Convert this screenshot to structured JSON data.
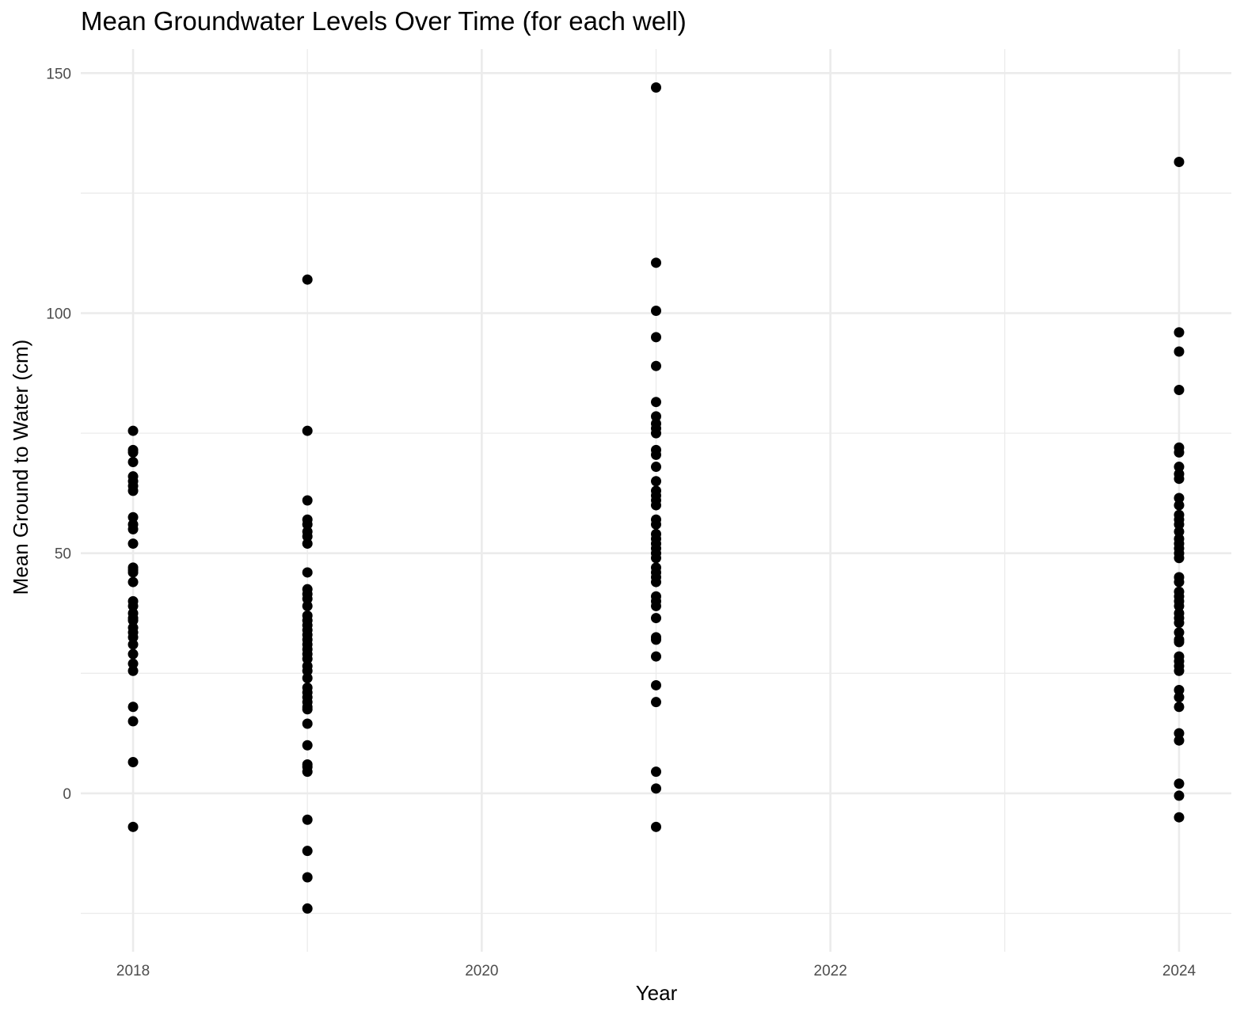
{
  "chart_data": {
    "type": "scatter",
    "title": "Mean Groundwater Levels Over Time (for each well)",
    "xlabel": "Year",
    "ylabel": "Mean Ground to Water (cm)",
    "xlim": [
      2017.7,
      2024.3
    ],
    "ylim": [
      -33,
      155
    ],
    "x_ticks": [
      2018,
      2020,
      2022,
      2024
    ],
    "x_tick_labels": [
      "2018",
      "2020",
      "2022",
      "2024"
    ],
    "y_ticks": [
      0,
      50,
      100,
      150
    ],
    "y_tick_labels": [
      "0",
      "50",
      "100",
      "150"
    ],
    "grid": true,
    "point_color": "#000000",
    "grid_color": "#ebebeb",
    "series": [
      {
        "points": [
          {
            "x": 2018,
            "y": 75.5
          },
          {
            "x": 2018,
            "y": 71.5
          },
          {
            "x": 2018,
            "y": 71.0
          },
          {
            "x": 2018,
            "y": 69.0
          },
          {
            "x": 2018,
            "y": 66.0
          },
          {
            "x": 2018,
            "y": 65.0
          },
          {
            "x": 2018,
            "y": 64.0
          },
          {
            "x": 2018,
            "y": 63.0
          },
          {
            "x": 2018,
            "y": 57.5
          },
          {
            "x": 2018,
            "y": 56.0
          },
          {
            "x": 2018,
            "y": 55.0
          },
          {
            "x": 2018,
            "y": 52.0
          },
          {
            "x": 2018,
            "y": 47.0
          },
          {
            "x": 2018,
            "y": 46.5
          },
          {
            "x": 2018,
            "y": 46.0
          },
          {
            "x": 2018,
            "y": 44.0
          },
          {
            "x": 2018,
            "y": 40.0
          },
          {
            "x": 2018,
            "y": 39.0
          },
          {
            "x": 2018,
            "y": 37.5
          },
          {
            "x": 2018,
            "y": 36.5
          },
          {
            "x": 2018,
            "y": 36.0
          },
          {
            "x": 2018,
            "y": 34.5
          },
          {
            "x": 2018,
            "y": 33.5
          },
          {
            "x": 2018,
            "y": 32.5
          },
          {
            "x": 2018,
            "y": 31.0
          },
          {
            "x": 2018,
            "y": 29.0
          },
          {
            "x": 2018,
            "y": 27.0
          },
          {
            "x": 2018,
            "y": 25.5
          },
          {
            "x": 2018,
            "y": 18.0
          },
          {
            "x": 2018,
            "y": 15.0
          },
          {
            "x": 2018,
            "y": 6.5
          },
          {
            "x": 2018,
            "y": -7.0
          },
          {
            "x": 2019,
            "y": 107.0
          },
          {
            "x": 2019,
            "y": 75.5
          },
          {
            "x": 2019,
            "y": 61.0
          },
          {
            "x": 2019,
            "y": 57.0
          },
          {
            "x": 2019,
            "y": 56.0
          },
          {
            "x": 2019,
            "y": 54.5
          },
          {
            "x": 2019,
            "y": 53.5
          },
          {
            "x": 2019,
            "y": 52.0
          },
          {
            "x": 2019,
            "y": 46.0
          },
          {
            "x": 2019,
            "y": 42.5
          },
          {
            "x": 2019,
            "y": 41.5
          },
          {
            "x": 2019,
            "y": 40.5
          },
          {
            "x": 2019,
            "y": 39.0
          },
          {
            "x": 2019,
            "y": 37.0
          },
          {
            "x": 2019,
            "y": 36.0
          },
          {
            "x": 2019,
            "y": 35.0
          },
          {
            "x": 2019,
            "y": 34.0
          },
          {
            "x": 2019,
            "y": 33.0
          },
          {
            "x": 2019,
            "y": 32.0
          },
          {
            "x": 2019,
            "y": 31.0
          },
          {
            "x": 2019,
            "y": 30.0
          },
          {
            "x": 2019,
            "y": 29.0
          },
          {
            "x": 2019,
            "y": 28.0
          },
          {
            "x": 2019,
            "y": 26.5
          },
          {
            "x": 2019,
            "y": 25.5
          },
          {
            "x": 2019,
            "y": 24.0
          },
          {
            "x": 2019,
            "y": 22.0
          },
          {
            "x": 2019,
            "y": 21.0
          },
          {
            "x": 2019,
            "y": 20.0
          },
          {
            "x": 2019,
            "y": 19.0
          },
          {
            "x": 2019,
            "y": 18.0
          },
          {
            "x": 2019,
            "y": 17.5
          },
          {
            "x": 2019,
            "y": 14.5
          },
          {
            "x": 2019,
            "y": 10.0
          },
          {
            "x": 2019,
            "y": 6.0
          },
          {
            "x": 2019,
            "y": 5.5
          },
          {
            "x": 2019,
            "y": 4.5
          },
          {
            "x": 2019,
            "y": -5.5
          },
          {
            "x": 2019,
            "y": -12.0
          },
          {
            "x": 2019,
            "y": -17.5
          },
          {
            "x": 2019,
            "y": -24.0
          },
          {
            "x": 2021,
            "y": 147.0
          },
          {
            "x": 2021,
            "y": 110.5
          },
          {
            "x": 2021,
            "y": 100.5
          },
          {
            "x": 2021,
            "y": 95.0
          },
          {
            "x": 2021,
            "y": 89.0
          },
          {
            "x": 2021,
            "y": 81.5
          },
          {
            "x": 2021,
            "y": 78.5
          },
          {
            "x": 2021,
            "y": 77.0
          },
          {
            "x": 2021,
            "y": 76.0
          },
          {
            "x": 2021,
            "y": 75.0
          },
          {
            "x": 2021,
            "y": 71.5
          },
          {
            "x": 2021,
            "y": 70.5
          },
          {
            "x": 2021,
            "y": 68.0
          },
          {
            "x": 2021,
            "y": 65.0
          },
          {
            "x": 2021,
            "y": 63.0
          },
          {
            "x": 2021,
            "y": 62.0
          },
          {
            "x": 2021,
            "y": 61.0
          },
          {
            "x": 2021,
            "y": 60.0
          },
          {
            "x": 2021,
            "y": 57.0
          },
          {
            "x": 2021,
            "y": 56.0
          },
          {
            "x": 2021,
            "y": 54.0
          },
          {
            "x": 2021,
            "y": 53.0
          },
          {
            "x": 2021,
            "y": 52.0
          },
          {
            "x": 2021,
            "y": 51.0
          },
          {
            "x": 2021,
            "y": 50.0
          },
          {
            "x": 2021,
            "y": 49.0
          },
          {
            "x": 2021,
            "y": 47.0
          },
          {
            "x": 2021,
            "y": 46.0
          },
          {
            "x": 2021,
            "y": 45.0
          },
          {
            "x": 2021,
            "y": 44.0
          },
          {
            "x": 2021,
            "y": 41.0
          },
          {
            "x": 2021,
            "y": 40.0
          },
          {
            "x": 2021,
            "y": 39.0
          },
          {
            "x": 2021,
            "y": 36.5
          },
          {
            "x": 2021,
            "y": 32.5
          },
          {
            "x": 2021,
            "y": 32.0
          },
          {
            "x": 2021,
            "y": 28.5
          },
          {
            "x": 2021,
            "y": 22.5
          },
          {
            "x": 2021,
            "y": 19.0
          },
          {
            "x": 2021,
            "y": 4.5
          },
          {
            "x": 2021,
            "y": 1.0
          },
          {
            "x": 2021,
            "y": -7.0
          },
          {
            "x": 2024,
            "y": 131.5
          },
          {
            "x": 2024,
            "y": 96.0
          },
          {
            "x": 2024,
            "y": 92.0
          },
          {
            "x": 2024,
            "y": 84.0
          },
          {
            "x": 2024,
            "y": 72.0
          },
          {
            "x": 2024,
            "y": 71.0
          },
          {
            "x": 2024,
            "y": 68.0
          },
          {
            "x": 2024,
            "y": 66.5
          },
          {
            "x": 2024,
            "y": 65.5
          },
          {
            "x": 2024,
            "y": 61.5
          },
          {
            "x": 2024,
            "y": 60.0
          },
          {
            "x": 2024,
            "y": 58.0
          },
          {
            "x": 2024,
            "y": 57.0
          },
          {
            "x": 2024,
            "y": 56.0
          },
          {
            "x": 2024,
            "y": 54.5
          },
          {
            "x": 2024,
            "y": 53.0
          },
          {
            "x": 2024,
            "y": 52.0
          },
          {
            "x": 2024,
            "y": 51.0
          },
          {
            "x": 2024,
            "y": 50.0
          },
          {
            "x": 2024,
            "y": 49.0
          },
          {
            "x": 2024,
            "y": 45.0
          },
          {
            "x": 2024,
            "y": 44.0
          },
          {
            "x": 2024,
            "y": 42.0
          },
          {
            "x": 2024,
            "y": 41.0
          },
          {
            "x": 2024,
            "y": 40.0
          },
          {
            "x": 2024,
            "y": 39.0
          },
          {
            "x": 2024,
            "y": 37.5
          },
          {
            "x": 2024,
            "y": 36.5
          },
          {
            "x": 2024,
            "y": 35.5
          },
          {
            "x": 2024,
            "y": 33.5
          },
          {
            "x": 2024,
            "y": 32.0
          },
          {
            "x": 2024,
            "y": 31.5
          },
          {
            "x": 2024,
            "y": 28.5
          },
          {
            "x": 2024,
            "y": 27.5
          },
          {
            "x": 2024,
            "y": 26.5
          },
          {
            "x": 2024,
            "y": 25.5
          },
          {
            "x": 2024,
            "y": 21.5
          },
          {
            "x": 2024,
            "y": 20.0
          },
          {
            "x": 2024,
            "y": 18.0
          },
          {
            "x": 2024,
            "y": 12.5
          },
          {
            "x": 2024,
            "y": 11.0
          },
          {
            "x": 2024,
            "y": 2.0
          },
          {
            "x": 2024,
            "y": -0.5
          },
          {
            "x": 2024,
            "y": -5.0
          }
        ]
      }
    ]
  }
}
